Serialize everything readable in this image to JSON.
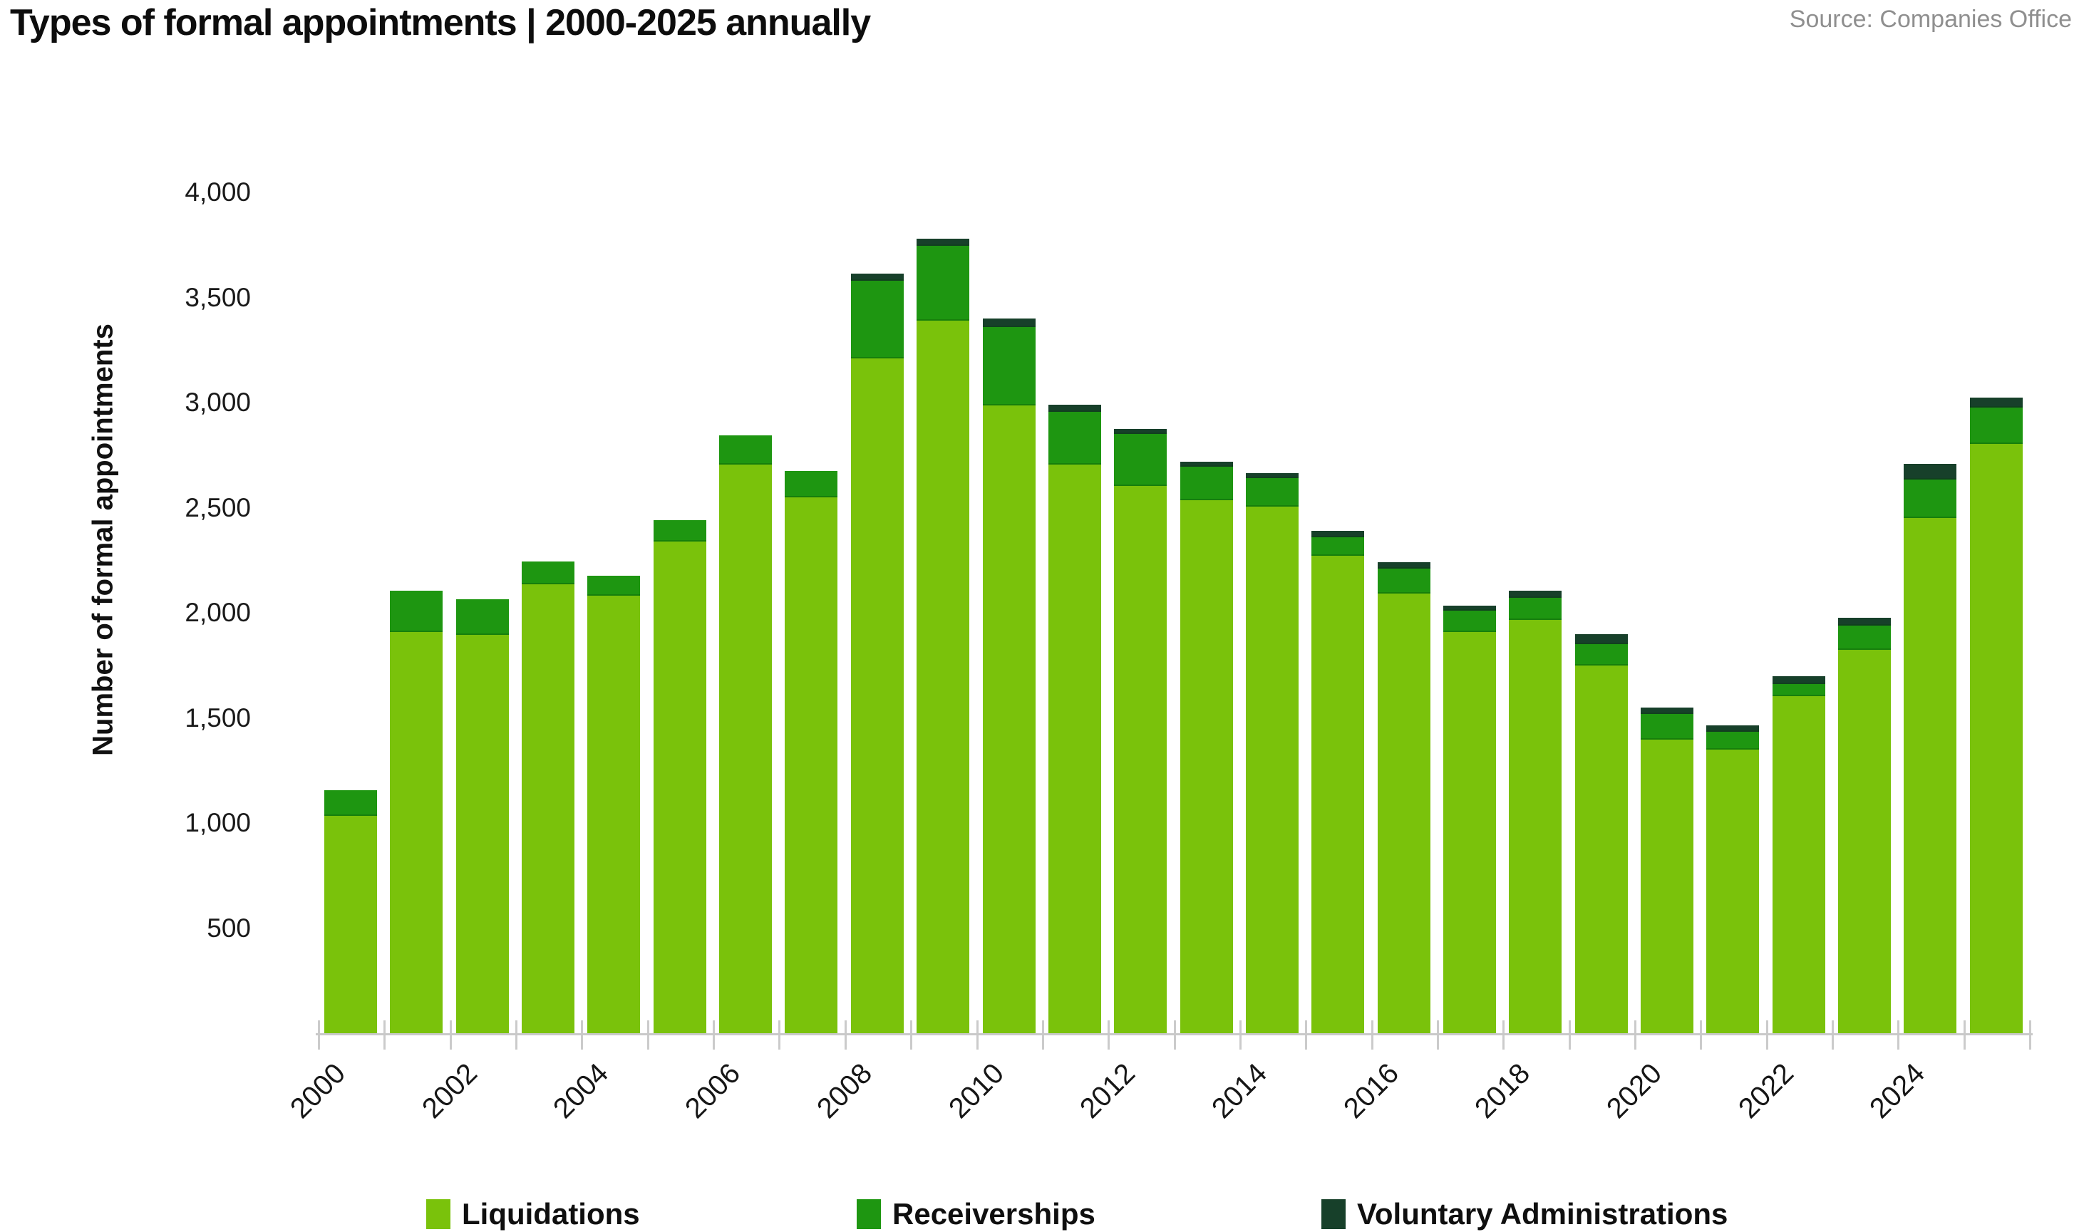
{
  "title": "Types of formal appointments | 2000-2025 annually",
  "source": "Source: Companies Office",
  "y_axis": {
    "title": "Number of formal appointments",
    "ticks": [
      {
        "label": "500",
        "value": 500
      },
      {
        "label": "1,000",
        "value": 1000
      },
      {
        "label": "1,500",
        "value": 1500
      },
      {
        "label": "2,000",
        "value": 2000
      },
      {
        "label": "2,500",
        "value": 2500
      },
      {
        "label": "3,000",
        "value": 3000
      },
      {
        "label": "3,500",
        "value": 3500
      },
      {
        "label": "4,000",
        "value": 4000
      }
    ]
  },
  "x_axis": {
    "labeled_years": [
      "2000",
      "2002",
      "2004",
      "2006",
      "2008",
      "2010",
      "2012",
      "2014",
      "2016",
      "2018",
      "2020",
      "2022",
      "2024"
    ]
  },
  "legend": [
    {
      "label": "Liquidations",
      "color": "#7ac20b"
    },
    {
      "label": "Receiverships",
      "color": "#1e9611"
    },
    {
      "label": "Voluntary Administrations",
      "color": "#17402a"
    }
  ],
  "colors": {
    "liquidations": "#7ac20b",
    "receiverships": "#1e9611",
    "voluntary_administrations": "#17402a",
    "axis": "#c9c9c9",
    "text": "#111111",
    "source_text": "#8f8f8f"
  },
  "chart_data": {
    "type": "bar",
    "stacked": true,
    "title": "Types of formal appointments | 2000-2025 annually",
    "xlabel": "",
    "ylabel": "Number of formal appointments",
    "ylim": [
      0,
      4000
    ],
    "grid": false,
    "legend_position": "bottom",
    "categories": [
      2000,
      2001,
      2002,
      2003,
      2004,
      2005,
      2006,
      2007,
      2008,
      2009,
      2010,
      2011,
      2012,
      2013,
      2014,
      2015,
      2016,
      2017,
      2018,
      2019,
      2020,
      2021,
      2022,
      2023,
      2024,
      2025
    ],
    "series": [
      {
        "name": "Liquidations",
        "color": "#7ac20b",
        "values": [
          1035,
          1910,
          1895,
          2135,
          2080,
          2340,
          2705,
          2550,
          3210,
          3390,
          2985,
          2705,
          2605,
          2535,
          2505,
          2270,
          2090,
          1910,
          1965,
          1750,
          1395,
          1350,
          1605,
          1825,
          2450,
          2805
        ]
      },
      {
        "name": "Receiverships",
        "color": "#1e9611",
        "values": [
          120,
          195,
          170,
          110,
          95,
          100,
          140,
          125,
          370,
          355,
          375,
          250,
          245,
          160,
          135,
          90,
          120,
          100,
          105,
          100,
          125,
          85,
          55,
          115,
          185,
          170
        ]
      },
      {
        "name": "Voluntary Administrations",
        "color": "#17402a",
        "values": [
          0,
          0,
          0,
          0,
          0,
          0,
          0,
          0,
          35,
          35,
          40,
          35,
          25,
          25,
          25,
          30,
          30,
          25,
          35,
          50,
          30,
          30,
          40,
          35,
          75,
          50
        ]
      }
    ],
    "totals": [
      1155,
      2105,
      2065,
      2245,
      2175,
      2440,
      2845,
      2675,
      3615,
      3780,
      3400,
      2990,
      2875,
      2720,
      2665,
      2390,
      2240,
      2035,
      2105,
      1900,
      1550,
      1465,
      1700,
      1975,
      2710,
      3025
    ]
  }
}
